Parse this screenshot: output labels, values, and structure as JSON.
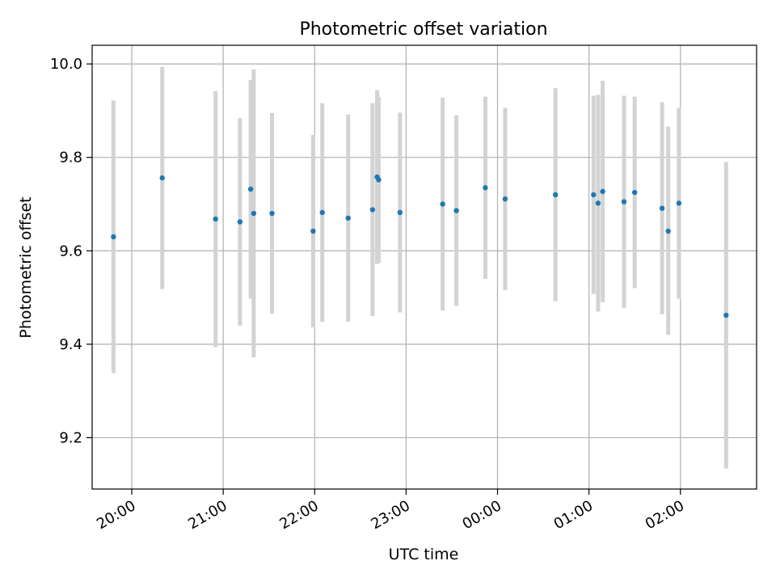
{
  "chart_data": {
    "type": "scatter",
    "title": "Photometric offset variation",
    "xlabel": "UTC time",
    "ylabel": "Photometric offset",
    "xlim": [
      "19:34",
      "02:50"
    ],
    "ylim": [
      9.09,
      10.04
    ],
    "x_ticks": [
      "20:00",
      "21:00",
      "22:00",
      "23:00",
      "00:00",
      "01:00",
      "02:00"
    ],
    "y_ticks": [
      "9.2",
      "9.4",
      "9.6",
      "9.8",
      "10.0"
    ],
    "grid": true,
    "colors": {
      "points": "#1f77b4",
      "errorbars": "#d3d3d3",
      "grid": "#b0b0b0"
    },
    "points": [
      {
        "x": "19:48",
        "y": 9.63,
        "ylow": 9.338,
        "yhigh": 9.922
      },
      {
        "x": "20:20",
        "y": 9.756,
        "ylow": 9.518,
        "yhigh": 9.994
      },
      {
        "x": "20:55",
        "y": 9.668,
        "ylow": 9.394,
        "yhigh": 9.942
      },
      {
        "x": "21:11",
        "y": 9.662,
        "ylow": 9.44,
        "yhigh": 9.884
      },
      {
        "x": "21:18",
        "y": 9.732,
        "ylow": 9.498,
        "yhigh": 9.966
      },
      {
        "x": "21:20",
        "y": 9.68,
        "ylow": 9.372,
        "yhigh": 9.988
      },
      {
        "x": "21:32",
        "y": 9.68,
        "ylow": 9.465,
        "yhigh": 9.895
      },
      {
        "x": "21:59",
        "y": 9.642,
        "ylow": 9.436,
        "yhigh": 9.848
      },
      {
        "x": "22:05",
        "y": 9.682,
        "ylow": 9.448,
        "yhigh": 9.916
      },
      {
        "x": "22:22",
        "y": 9.67,
        "ylow": 9.448,
        "yhigh": 9.892
      },
      {
        "x": "22:38",
        "y": 9.688,
        "ylow": 9.46,
        "yhigh": 9.916
      },
      {
        "x": "22:41",
        "y": 9.758,
        "ylow": 9.572,
        "yhigh": 9.944
      },
      {
        "x": "22:42",
        "y": 9.752,
        "ylow": 9.574,
        "yhigh": 9.93
      },
      {
        "x": "22:56",
        "y": 9.682,
        "ylow": 9.468,
        "yhigh": 9.896
      },
      {
        "x": "23:24",
        "y": 9.7,
        "ylow": 9.472,
        "yhigh": 9.928
      },
      {
        "x": "23:33",
        "y": 9.686,
        "ylow": 9.482,
        "yhigh": 9.89
      },
      {
        "x": "23:52",
        "y": 9.735,
        "ylow": 9.54,
        "yhigh": 9.93
      },
      {
        "x": "00:05",
        "y": 9.711,
        "ylow": 9.516,
        "yhigh": 9.906
      },
      {
        "x": "00:38",
        "y": 9.72,
        "ylow": 9.492,
        "yhigh": 9.948
      },
      {
        "x": "01:03",
        "y": 9.72,
        "ylow": 9.508,
        "yhigh": 9.932
      },
      {
        "x": "01:06",
        "y": 9.702,
        "ylow": 9.47,
        "yhigh": 9.934
      },
      {
        "x": "01:09",
        "y": 9.727,
        "ylow": 9.49,
        "yhigh": 9.964
      },
      {
        "x": "01:23",
        "y": 9.705,
        "ylow": 9.478,
        "yhigh": 9.932
      },
      {
        "x": "01:30",
        "y": 9.725,
        "ylow": 9.52,
        "yhigh": 9.93
      },
      {
        "x": "01:48",
        "y": 9.691,
        "ylow": 9.464,
        "yhigh": 9.918
      },
      {
        "x": "01:52",
        "y": 9.642,
        "ylow": 9.42,
        "yhigh": 9.866
      },
      {
        "x": "01:59",
        "y": 9.702,
        "ylow": 9.498,
        "yhigh": 9.906
      },
      {
        "x": "02:30",
        "y": 9.462,
        "ylow": 9.134,
        "yhigh": 9.79
      }
    ]
  }
}
